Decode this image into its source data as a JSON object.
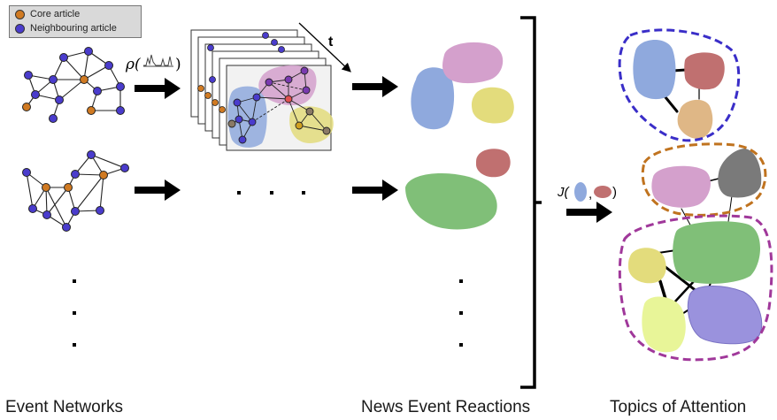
{
  "legend": {
    "core_label": "Core article",
    "neighbour_label": "Neighbouring article",
    "core_color": "#d07a22",
    "neighbour_color": "#4a3ccc"
  },
  "labels": {
    "rho": "ρ(",
    "rho_close": ")",
    "time": "t",
    "jaccard": "J(",
    "jaccard_comma": ",",
    "jaccard_close": ")",
    "ellipsis_h": ". . .",
    "ellipsis_v": ":"
  },
  "captions": {
    "event_networks": "Event Networks",
    "news_event_reactions": "News Event Reactions",
    "topics_of_attention": "Topics of Attention"
  },
  "colors": {
    "blue_blob": "#8fa9dd",
    "pink_blob": "#d4a0cc",
    "yellow_blob": "#e3dc7c",
    "red_blob": "#c07070",
    "green_blob": "#80bf78",
    "gray_blob": "#7a7a7a",
    "tan_blob": "#dfb786",
    "lime_blob": "#e8f598",
    "purple_blob": "#9a92dd",
    "cluster_blue": "#3a2ec8",
    "cluster_orange": "#c0731f",
    "cluster_magenta": "#a0389a"
  }
}
